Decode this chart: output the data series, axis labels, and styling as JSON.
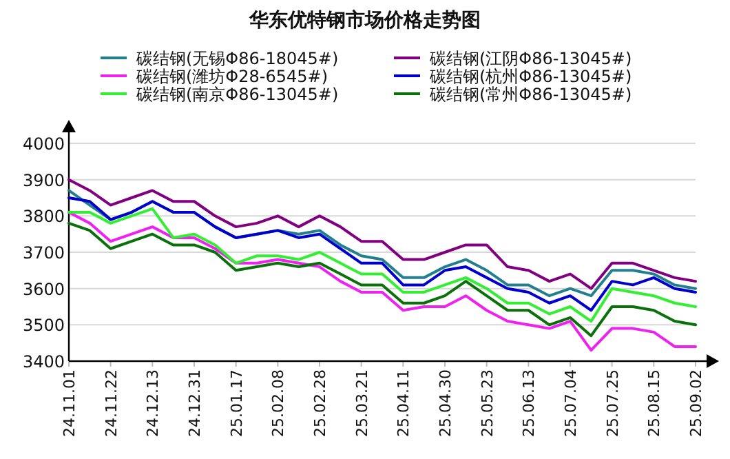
{
  "chart_data": {
    "type": "line",
    "title": "华东优特钢市场价格走势图",
    "categories": [
      "24.11.01",
      null,
      "24.11.22",
      null,
      "24.12.13",
      null,
      "24.12.31",
      null,
      "25.01.17",
      null,
      "25.02.08",
      null,
      "25.02.28",
      null,
      "25.03.21",
      null,
      "25.04.11",
      null,
      "25.04.30",
      null,
      "25.05.23",
      null,
      "25.06.13",
      null,
      "25.07.04",
      null,
      "25.07.25",
      null,
      "25.08.15",
      null,
      "25.09.02"
    ],
    "series": [
      {
        "name": "碳结钢(无锡Φ86-18045#)",
        "color": "#22808e",
        "values": [
          3870,
          3830,
          3790,
          3810,
          3840,
          3810,
          3810,
          3770,
          3740,
          3750,
          3760,
          3750,
          3760,
          3720,
          3690,
          3680,
          3630,
          3630,
          3660,
          3680,
          3650,
          3610,
          3610,
          3580,
          3600,
          3580,
          3650,
          3650,
          3640,
          3610,
          3600
        ]
      },
      {
        "name": "碳结钢(江阴Φ86-13045#)",
        "color": "#800080",
        "values": [
          3900,
          3870,
          3830,
          3850,
          3870,
          3840,
          3840,
          3800,
          3770,
          3780,
          3800,
          3770,
          3800,
          3770,
          3730,
          3730,
          3680,
          3680,
          3700,
          3720,
          3720,
          3660,
          3650,
          3620,
          3640,
          3600,
          3670,
          3670,
          3650,
          3630,
          3620
        ]
      },
      {
        "name": "碳结钢(潍坊Φ28-6545#)",
        "color": "#ee22ee",
        "values": [
          3810,
          3780,
          3730,
          3750,
          3770,
          3740,
          3740,
          3710,
          3670,
          3670,
          3680,
          3670,
          3660,
          3620,
          3590,
          3590,
          3540,
          3550,
          3550,
          3580,
          3540,
          3510,
          3500,
          3490,
          3510,
          3430,
          3490,
          3490,
          3480,
          3440,
          3440
        ]
      },
      {
        "name": "碳结钢(杭州Φ86-13045#)",
        "color": "#0000cc",
        "values": [
          3850,
          3840,
          3790,
          3810,
          3840,
          3810,
          3810,
          3770,
          3740,
          3750,
          3760,
          3740,
          3750,
          3710,
          3670,
          3670,
          3610,
          3610,
          3650,
          3660,
          3630,
          3600,
          3590,
          3560,
          3580,
          3540,
          3620,
          3610,
          3630,
          3600,
          3590
        ]
      },
      {
        "name": "碳结钢(南京Φ86-13045#)",
        "color": "#33ee33",
        "values": [
          3810,
          3810,
          3780,
          3800,
          3820,
          3740,
          3750,
          3720,
          3670,
          3690,
          3690,
          3680,
          3700,
          3670,
          3640,
          3640,
          3590,
          3590,
          3610,
          3630,
          3600,
          3560,
          3560,
          3530,
          3550,
          3510,
          3600,
          3590,
          3580,
          3560,
          3550
        ]
      },
      {
        "name": "碳结钢(常州Φ86-13045#)",
        "color": "#0a700a",
        "values": [
          3780,
          3760,
          3710,
          3730,
          3750,
          3720,
          3720,
          3700,
          3650,
          3660,
          3670,
          3660,
          3670,
          3640,
          3610,
          3610,
          3560,
          3560,
          3580,
          3620,
          3580,
          3540,
          3540,
          3500,
          3520,
          3470,
          3550,
          3550,
          3540,
          3510,
          3500
        ]
      }
    ],
    "ylim": [
      3400,
      4000
    ],
    "yticks": [
      3400,
      3500,
      3600,
      3700,
      3800,
      3900,
      4000
    ],
    "grid": "y",
    "legend": "top",
    "marker": "none",
    "line_style": "solid"
  }
}
